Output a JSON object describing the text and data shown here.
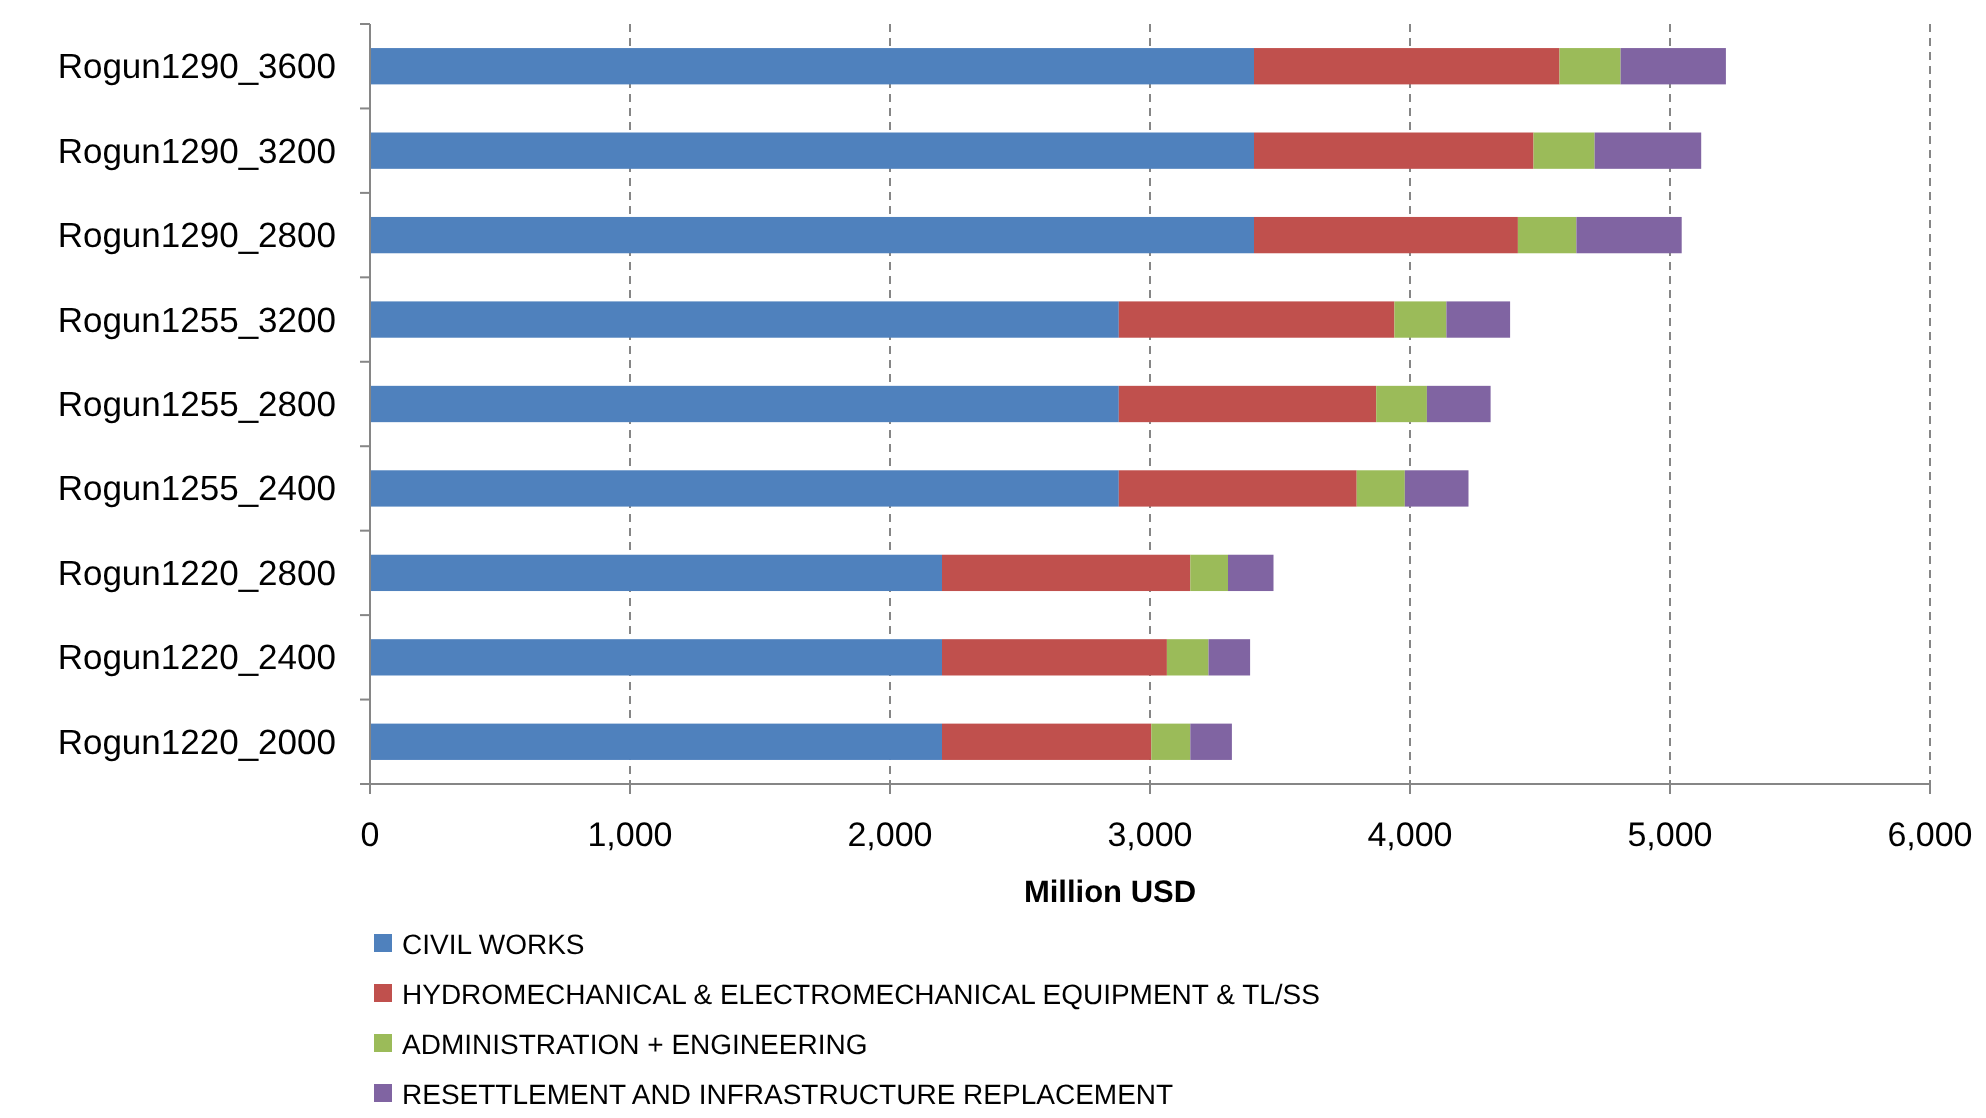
{
  "chart_data": {
    "type": "bar",
    "orientation": "horizontal",
    "stacked": true,
    "xlabel": "Million USD",
    "categories": [
      "Rogun1290_3600",
      "Rogun1290_3200",
      "Rogun1290_2800",
      "Rogun1255_3200",
      "Rogun1255_2800",
      "Rogun1255_2400",
      "Rogun1220_2800",
      "Rogun1220_2400",
      "Rogun1220_2000"
    ],
    "series": [
      {
        "name": "CIVIL WORKS",
        "color": "#4f81bd",
        "values": [
          3400,
          3400,
          3400,
          2880,
          2880,
          2880,
          2200,
          2200,
          2200
        ]
      },
      {
        "name": "HYDROMECHANICAL & ELECTROMECHANICAL EQUIPMENT & TL/SS",
        "color": "#c0504d",
        "values": [
          1175,
          1075,
          1015,
          1060,
          990,
          915,
          955,
          865,
          805
        ]
      },
      {
        "name": "ADMINISTRATION + ENGINEERING",
        "color": "#9bbb59",
        "values": [
          235,
          235,
          225,
          200,
          195,
          185,
          145,
          160,
          150
        ]
      },
      {
        "name": "RESETTLEMENT AND INFRASTRUCTURE REPLACEMENT",
        "color": "#8064a2",
        "values": [
          405,
          410,
          405,
          245,
          245,
          245,
          175,
          160,
          160
        ]
      }
    ],
    "xlim": [
      0,
      6000
    ],
    "xticks": [
      0,
      {
        "value": 1000,
        "label": "1,000"
      },
      {
        "value": 2000,
        "label": "2,000"
      },
      {
        "value": 3000,
        "label": "3,000"
      },
      {
        "value": 4000,
        "label": "4,000"
      },
      {
        "value": 5000,
        "label": "5,000"
      },
      {
        "value": 6000,
        "label": "6,000"
      }
    ],
    "grid": "x",
    "legend": "bottom"
  }
}
